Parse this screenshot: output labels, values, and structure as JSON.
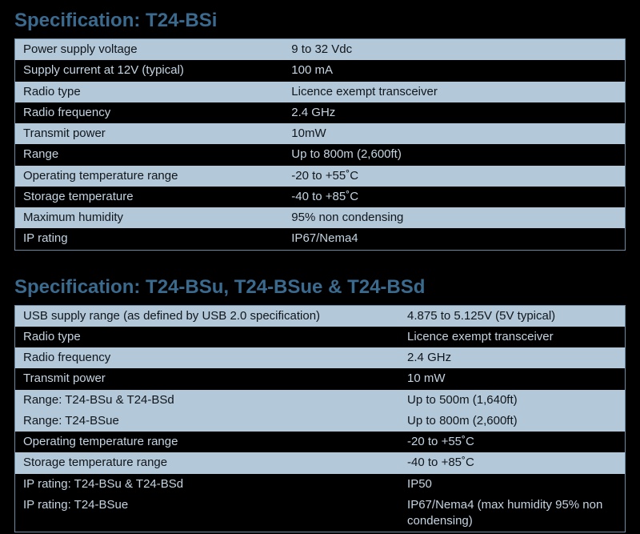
{
  "colors": {
    "title": "#3b6a8f",
    "row_light_bg": "#b3c8d9",
    "row_light_text": "#11161a",
    "row_dark_bg": "#000000",
    "row_dark_text": "#c4d4e1",
    "border": "#6a8aa3",
    "page_bg": "#000000"
  },
  "typography": {
    "title_fontsize_pt": 18,
    "cell_fontsize_pt": 11,
    "title_weight": 600
  },
  "section1": {
    "title": "Specification: T24-BSi",
    "label_col_width_pct": 44,
    "value_col_width_pct": 56,
    "rows": [
      {
        "label": "Power supply voltage",
        "value": "9 to 32 Vdc",
        "shade": "light"
      },
      {
        "label": "Supply current at 12V (typical)",
        "value": "100 mA",
        "shade": "dark"
      },
      {
        "label": "Radio type",
        "value": "Licence exempt transceiver",
        "shade": "light"
      },
      {
        "label": "Radio frequency",
        "value": "2.4 GHz",
        "shade": "dark"
      },
      {
        "label": "Transmit power",
        "value": "10mW",
        "shade": "light"
      },
      {
        "label": "Range",
        "value": "Up to 800m (2,600ft)",
        "shade": "dark"
      },
      {
        "label": "Operating temperature range",
        "value": "-20 to +55˚C",
        "shade": "light"
      },
      {
        "label": "Storage temperature",
        "value": "-40 to +85˚C",
        "shade": "dark"
      },
      {
        "label": "Maximum humidity",
        "value": "95% non condensing",
        "shade": "light"
      },
      {
        "label": "IP rating",
        "value": "IP67/Nema4",
        "shade": "dark"
      }
    ]
  },
  "section2": {
    "title": "Specification: T24-BSu, T24-BSue & T24-BSd",
    "label_col_width_pct": 63,
    "value_col_width_pct": 37,
    "rows": [
      {
        "label": "USB supply range (as defined by USB 2.0 specification)",
        "value": "4.875 to 5.125V (5V typical)",
        "shade": "light"
      },
      {
        "label": "Radio type",
        "value": "Licence exempt transceiver",
        "shade": "dark"
      },
      {
        "label": "Radio frequency",
        "value": "2.4 GHz",
        "shade": "light"
      },
      {
        "label": "Transmit power",
        "value": "10 mW",
        "shade": "dark"
      },
      {
        "label": "Range: T24-BSu & T24-BSd",
        "value": "Up to 500m (1,640ft)",
        "shade": "light"
      },
      {
        "label": "Range: T24-BSue",
        "value": "Up to 800m (2,600ft)",
        "shade": "light"
      },
      {
        "label": "Operating temperature range",
        "value": "-20 to +55˚C",
        "shade": "dark"
      },
      {
        "label": "Storage temperature range",
        "value": "-40 to +85˚C",
        "shade": "light"
      },
      {
        "label": "IP rating: T24-BSu & T24-BSd",
        "value": "IP50",
        "shade": "dark"
      },
      {
        "label": "IP rating: T24-BSue",
        "value": "IP67/Nema4 (max humidity 95% non condensing)",
        "shade": "dark"
      }
    ]
  }
}
